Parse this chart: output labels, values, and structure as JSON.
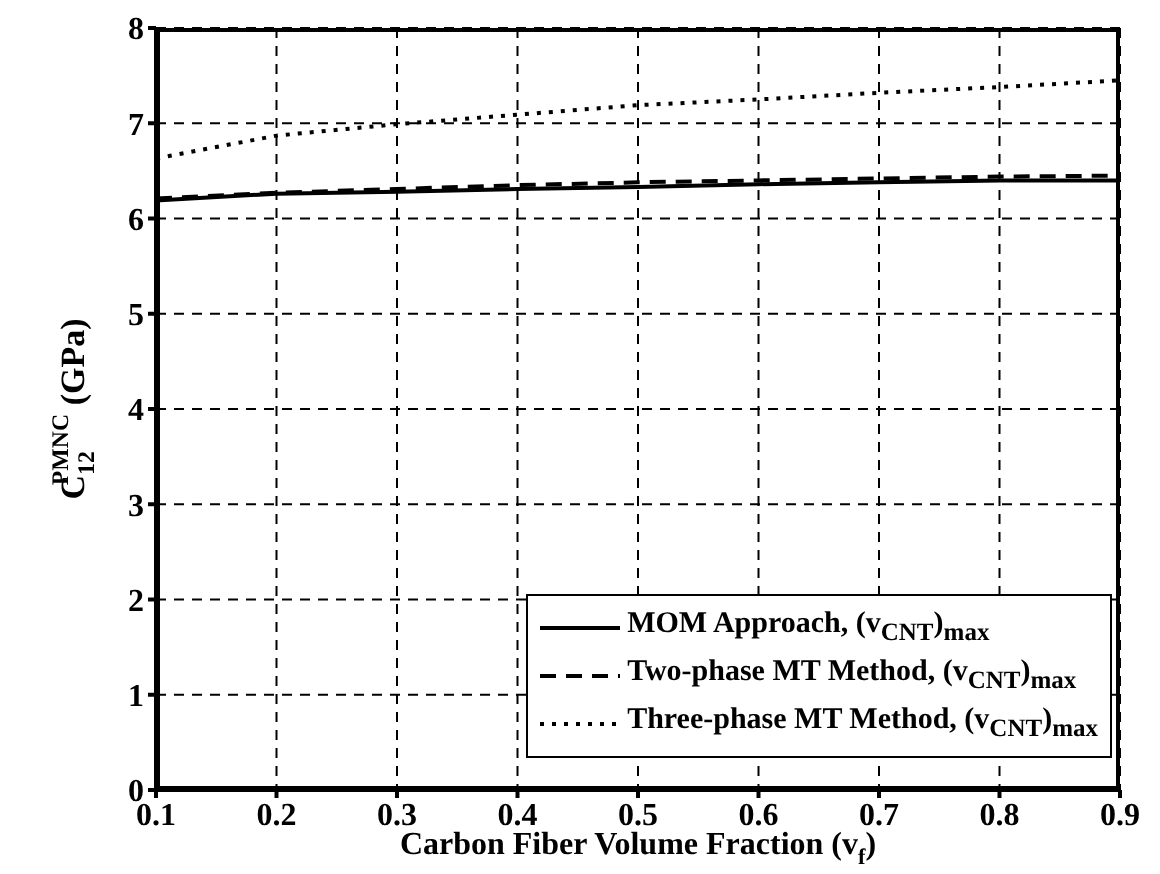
{
  "chart_data": {
    "type": "line",
    "xlabel": "Carbon Fiber Volume Fraction (v$_{f}$)",
    "ylabel": "C$_{12}$$^{PMNC}$ (GPa)",
    "x": [
      0.1,
      0.2,
      0.3,
      0.4,
      0.5,
      0.6,
      0.7,
      0.8,
      0.9
    ],
    "series": [
      {
        "name": "MOM Approach, (v$_{CNT}$)$_{max}$",
        "color": "#000000",
        "line_style": "solid",
        "values": [
          6.19,
          6.26,
          6.28,
          6.31,
          6.33,
          6.36,
          6.38,
          6.4,
          6.4
        ]
      },
      {
        "name": "Two-phase MT Method, (v$_{CNT}$)$_{max}$",
        "color": "#000000",
        "line_style": "dashed",
        "values": [
          6.21,
          6.27,
          6.31,
          6.35,
          6.38,
          6.4,
          6.42,
          6.44,
          6.45
        ]
      },
      {
        "name": "Three-phase MT Method, (v$_{CNT}$)$_{max}$",
        "color": "#000000",
        "line_style": "dotted",
        "values": [
          6.63,
          6.87,
          6.99,
          7.09,
          7.19,
          7.25,
          7.32,
          7.38,
          7.45
        ]
      }
    ],
    "xlim": [
      0.1,
      0.9
    ],
    "xticks": [
      0.1,
      0.2,
      0.3,
      0.4,
      0.5,
      0.6,
      0.7,
      0.8,
      0.9
    ],
    "ylim": [
      0,
      8
    ],
    "yticks": [
      0,
      1,
      2,
      3,
      4,
      5,
      6,
      7,
      8
    ],
    "grid": true,
    "legend": "bottom right",
    "marker": "none"
  }
}
